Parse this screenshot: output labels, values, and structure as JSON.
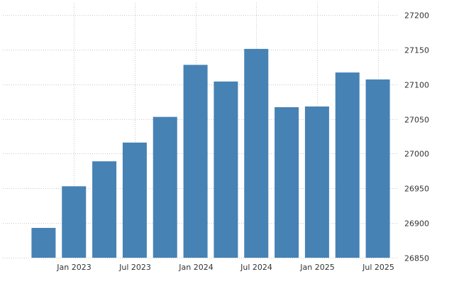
{
  "chart_data": {
    "type": "bar",
    "categories": [
      "Oct 2022",
      "Jan 2023",
      "Apr 2023",
      "Jul 2023",
      "Oct 2023",
      "Jan 2024",
      "Apr 2024",
      "Jul 2024",
      "Oct 2024",
      "Jan 2025",
      "Apr 2025",
      "Jul 2025"
    ],
    "values": [
      26893,
      26953,
      26989,
      27016,
      27053,
      27128,
      27104,
      27151,
      27067,
      27068,
      27117,
      27107
    ],
    "title": "",
    "xlabel": "",
    "ylabel": "",
    "ylim": [
      26850,
      27200
    ],
    "yticks": [
      26850,
      26900,
      26950,
      27000,
      27050,
      27100,
      27150,
      27200
    ],
    "xtick_labels": [
      {
        "category": "Jan 2023",
        "label": "Jan 2023"
      },
      {
        "category": "Jul 2023",
        "label": "Jul 2023"
      },
      {
        "category": "Jan 2024",
        "label": "Jan 2024"
      },
      {
        "category": "Jul 2024",
        "label": "Jul 2024"
      },
      {
        "category": "Jan 2025",
        "label": "Jan 2025"
      },
      {
        "category": "Jul 2025",
        "label": "Jul 2025"
      }
    ],
    "grid": true,
    "y_axis_position": "right",
    "bar_color": "#4682b4"
  }
}
